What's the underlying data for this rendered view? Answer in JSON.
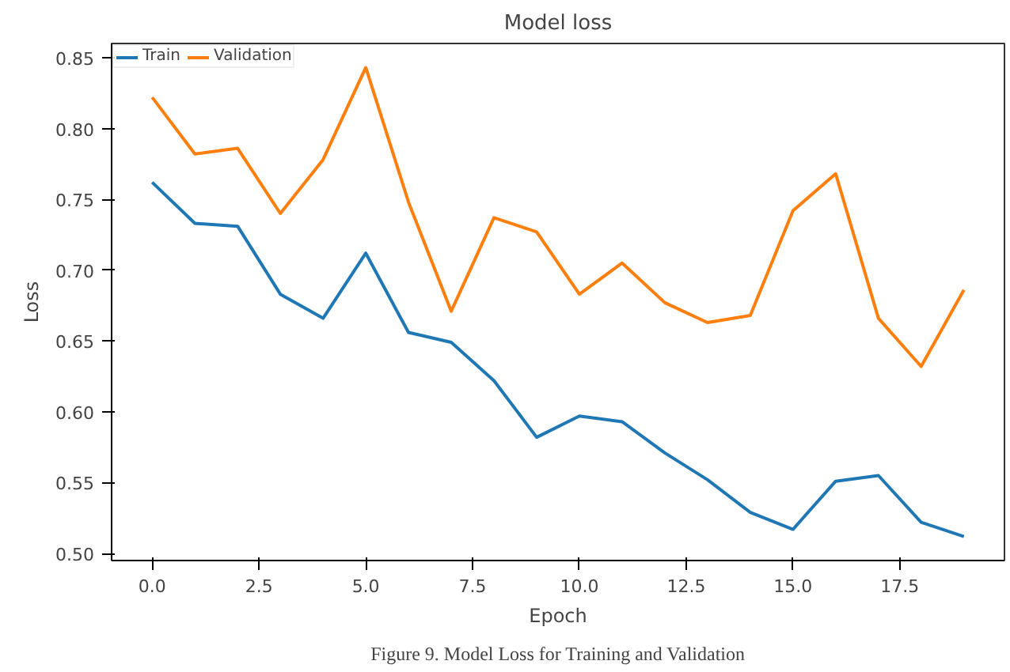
{
  "chart_data": {
    "type": "line",
    "title": "Model loss",
    "xlabel": "Epoch",
    "ylabel": "Loss",
    "x": [
      0,
      1,
      2,
      3,
      4,
      5,
      6,
      7,
      8,
      9,
      10,
      11,
      12,
      13,
      14,
      15,
      16,
      17,
      18,
      19
    ],
    "series": [
      {
        "name": "Train",
        "color": "#1f77b4",
        "values": [
          0.762,
          0.733,
          0.731,
          0.683,
          0.666,
          0.712,
          0.656,
          0.649,
          0.622,
          0.582,
          0.597,
          0.593,
          0.571,
          0.552,
          0.529,
          0.517,
          0.551,
          0.555,
          0.522,
          0.512
        ]
      },
      {
        "name": "Validation",
        "color": "#ff7f0e",
        "values": [
          0.822,
          0.782,
          0.786,
          0.74,
          0.778,
          0.843,
          0.748,
          0.671,
          0.737,
          0.727,
          0.683,
          0.705,
          0.677,
          0.663,
          0.668,
          0.742,
          0.768,
          0.666,
          0.632,
          0.686
        ]
      }
    ],
    "xlim": [
      -0.95,
      19.95
    ],
    "ylim": [
      0.495,
      0.86
    ],
    "xticks": [
      {
        "value": 0,
        "label": "0.0"
      },
      {
        "value": 2.5,
        "label": "2.5"
      },
      {
        "value": 5,
        "label": "5.0"
      },
      {
        "value": 7.5,
        "label": "7.5"
      },
      {
        "value": 10,
        "label": "10.0"
      },
      {
        "value": 12.5,
        "label": "12.5"
      },
      {
        "value": 15,
        "label": "15.0"
      },
      {
        "value": 17.5,
        "label": "17.5"
      }
    ],
    "yticks": [
      {
        "value": 0.5,
        "label": "0.50"
      },
      {
        "value": 0.55,
        "label": "0.55"
      },
      {
        "value": 0.6,
        "label": "0.60"
      },
      {
        "value": 0.65,
        "label": "0.65"
      },
      {
        "value": 0.7,
        "label": "0.70"
      },
      {
        "value": 0.75,
        "label": "0.75"
      },
      {
        "value": 0.8,
        "label": "0.80"
      },
      {
        "value": 0.85,
        "label": "0.85"
      }
    ],
    "legend": "top left",
    "grid": false,
    "line_style": "solid",
    "marker": "none",
    "annotations": [
      "Figure 9. Model Loss for Training and Validation"
    ]
  }
}
